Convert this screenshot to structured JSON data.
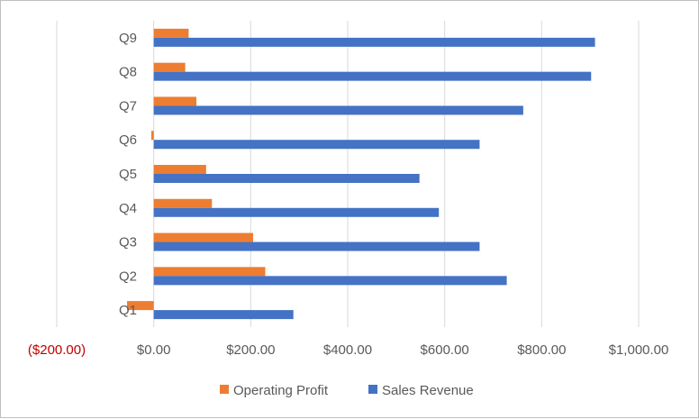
{
  "chart_data": {
    "type": "bar",
    "orientation": "horizontal",
    "title": "",
    "xlabel": "",
    "ylabel": "",
    "categories": [
      "Q1",
      "Q2",
      "Q3",
      "Q4",
      "Q5",
      "Q6",
      "Q7",
      "Q8",
      "Q9"
    ],
    "series": [
      {
        "name": "Operating Profit",
        "color": "#ED7D31",
        "values": [
          -55,
          230,
          205,
          120,
          108,
          -5,
          88,
          65,
          72
        ]
      },
      {
        "name": "Sales Revenue",
        "color": "#4472C4",
        "values": [
          288,
          728,
          672,
          588,
          548,
          672,
          762,
          902,
          910
        ]
      }
    ],
    "xlim": [
      -200,
      1000
    ],
    "xticks": [
      -200,
      0,
      200,
      400,
      600,
      800,
      1000
    ],
    "xtick_labels": [
      "($200.00)",
      "$0.00",
      "$200.00",
      "$400.00",
      "$600.00",
      "$800.00",
      "$1,000.00"
    ],
    "negative_tick_color": "#C00000",
    "tick_color": "#595959",
    "grid": true,
    "legend": "bottom"
  }
}
